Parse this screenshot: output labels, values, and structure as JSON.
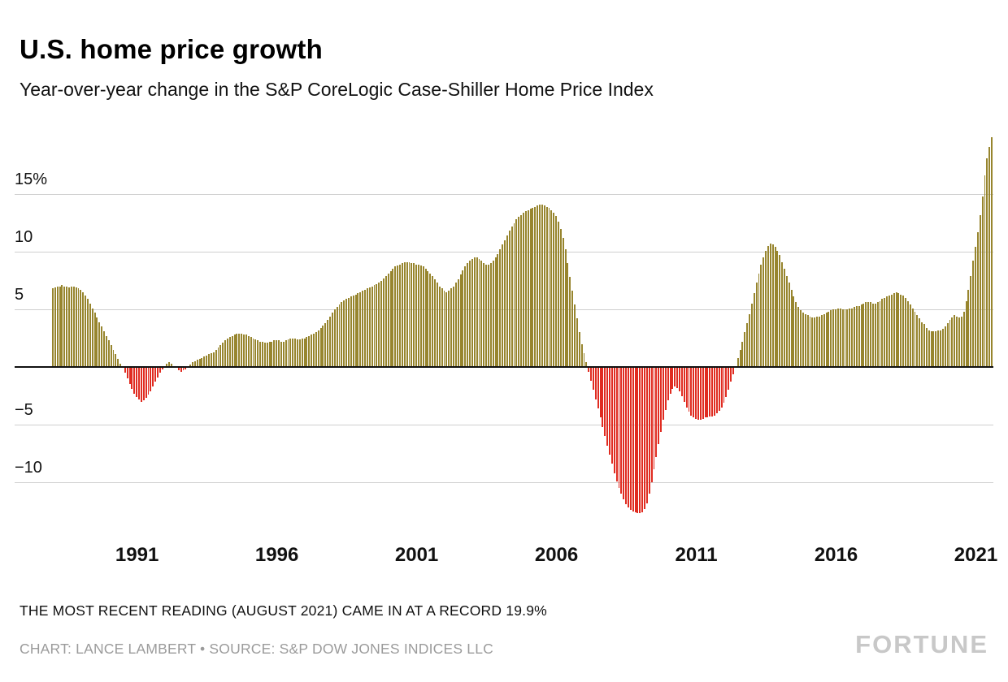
{
  "header": {
    "title": "U.S. home price growth",
    "subtitle": "Year-over-year change in the S&P CoreLogic Case-Shiller Home Price Index"
  },
  "footer": {
    "note": "THE MOST RECENT READING (AUGUST 2021) CAME IN AT A RECORD 19.9%",
    "credit": "CHART: LANCE LAMBERT • SOURCE: S&P DOW JONES INDICES LLC",
    "brand": "FORTUNE"
  },
  "chart_data": {
    "type": "bar",
    "title": "U.S. home price growth",
    "subtitle": "Year-over-year change in the S&P CoreLogic Case-Shiller Home Price Index",
    "unit": "percent, year-over-year",
    "frequency": "monthly",
    "start": "1988-01",
    "end": "2021-08",
    "latest_label": "AUGUST 2021",
    "latest_value": 19.9,
    "grid": true,
    "x_tick_labels": [
      "1991",
      "1996",
      "2001",
      "2006",
      "2011",
      "2016",
      "2021"
    ],
    "y_ticks": [
      15,
      10,
      5,
      -5,
      -10
    ],
    "y_tick_labels": [
      "15%",
      "10",
      "5",
      "−5",
      "−10"
    ],
    "ylim": [
      -13.8,
      20.6
    ],
    "colors": {
      "positive": "#97852E",
      "negative": "#E02C21",
      "gridline": "#CFCFCF",
      "zeroline": "#111111"
    },
    "values": [
      6.8,
      6.9,
      7.0,
      7.0,
      7.1,
      7.0,
      7.0,
      6.9,
      7.0,
      7.0,
      6.9,
      6.8,
      6.7,
      6.5,
      6.2,
      5.9,
      5.5,
      5.1,
      4.7,
      4.3,
      3.9,
      3.5,
      3.1,
      2.7,
      2.3,
      1.9,
      1.5,
      1.1,
      0.7,
      0.3,
      -0.1,
      -0.5,
      -1.0,
      -1.5,
      -1.9,
      -2.3,
      -2.6,
      -2.8,
      -3.0,
      -2.9,
      -2.7,
      -2.4,
      -2.1,
      -1.7,
      -1.3,
      -0.9,
      -0.5,
      -0.2,
      0.1,
      0.3,
      0.4,
      0.3,
      0.1,
      -0.1,
      -0.3,
      -0.4,
      -0.3,
      -0.2,
      0.0,
      0.2,
      0.4,
      0.5,
      0.6,
      0.7,
      0.8,
      0.9,
      1.0,
      1.1,
      1.2,
      1.3,
      1.5,
      1.7,
      1.9,
      2.1,
      2.3,
      2.5,
      2.6,
      2.7,
      2.8,
      2.9,
      2.9,
      2.9,
      2.8,
      2.8,
      2.7,
      2.6,
      2.5,
      2.4,
      2.3,
      2.2,
      2.2,
      2.1,
      2.1,
      2.2,
      2.2,
      2.3,
      2.3,
      2.3,
      2.2,
      2.2,
      2.3,
      2.4,
      2.5,
      2.5,
      2.5,
      2.4,
      2.4,
      2.5,
      2.5,
      2.6,
      2.7,
      2.8,
      2.9,
      3.0,
      3.2,
      3.4,
      3.6,
      3.8,
      4.1,
      4.4,
      4.7,
      5.0,
      5.2,
      5.4,
      5.6,
      5.8,
      5.9,
      6.0,
      6.1,
      6.2,
      6.3,
      6.4,
      6.5,
      6.6,
      6.7,
      6.8,
      6.9,
      7.0,
      7.1,
      7.2,
      7.3,
      7.5,
      7.7,
      7.9,
      8.1,
      8.3,
      8.5,
      8.7,
      8.8,
      8.9,
      9.0,
      9.1,
      9.1,
      9.1,
      9.0,
      9.0,
      8.9,
      8.9,
      8.8,
      8.7,
      8.5,
      8.3,
      8.1,
      7.9,
      7.6,
      7.3,
      7.0,
      6.8,
      6.6,
      6.5,
      6.6,
      6.8,
      7.0,
      7.3,
      7.6,
      8.0,
      8.4,
      8.7,
      9.0,
      9.2,
      9.4,
      9.5,
      9.5,
      9.4,
      9.2,
      9.0,
      8.9,
      8.9,
      9.0,
      9.2,
      9.5,
      9.8,
      10.2,
      10.6,
      11.0,
      11.4,
      11.8,
      12.2,
      12.5,
      12.8,
      13.0,
      13.2,
      13.4,
      13.5,
      13.6,
      13.7,
      13.8,
      13.9,
      14.0,
      14.1,
      14.1,
      14.0,
      13.9,
      13.8,
      13.6,
      13.4,
      13.1,
      12.6,
      12.0,
      11.2,
      10.2,
      9.0,
      7.8,
      6.6,
      5.4,
      4.2,
      3.0,
      2.0,
      1.2,
      0.4,
      -0.4,
      -1.2,
      -2.0,
      -2.8,
      -3.6,
      -4.4,
      -5.2,
      -6.0,
      -6.8,
      -7.6,
      -8.4,
      -9.2,
      -9.9,
      -10.5,
      -11.0,
      -11.5,
      -11.9,
      -12.2,
      -12.4,
      -12.5,
      -12.6,
      -12.7,
      -12.7,
      -12.6,
      -12.3,
      -11.8,
      -11.0,
      -10.0,
      -8.9,
      -7.8,
      -6.7,
      -5.6,
      -4.6,
      -3.7,
      -2.9,
      -2.3,
      -1.9,
      -1.7,
      -1.8,
      -2.1,
      -2.5,
      -3.0,
      -3.5,
      -3.9,
      -4.2,
      -4.4,
      -4.5,
      -4.6,
      -4.6,
      -4.5,
      -4.4,
      -4.4,
      -4.3,
      -4.3,
      -4.2,
      -4.0,
      -3.8,
      -3.5,
      -3.1,
      -2.6,
      -2.0,
      -1.3,
      -0.6,
      0.1,
      0.8,
      1.5,
      2.2,
      3.0,
      3.8,
      4.6,
      5.5,
      6.4,
      7.3,
      8.1,
      8.9,
      9.5,
      10.1,
      10.5,
      10.7,
      10.6,
      10.4,
      10.1,
      9.7,
      9.1,
      8.5,
      7.9,
      7.3,
      6.7,
      6.1,
      5.6,
      5.2,
      4.9,
      4.7,
      4.6,
      4.5,
      4.4,
      4.3,
      4.3,
      4.4,
      4.4,
      4.5,
      4.6,
      4.7,
      4.8,
      4.9,
      5.0,
      5.0,
      5.1,
      5.1,
      5.0,
      5.0,
      5.0,
      5.1,
      5.1,
      5.2,
      5.3,
      5.3,
      5.4,
      5.5,
      5.6,
      5.6,
      5.6,
      5.5,
      5.5,
      5.6,
      5.7,
      5.9,
      6.0,
      6.1,
      6.2,
      6.3,
      6.4,
      6.5,
      6.4,
      6.3,
      6.2,
      6.0,
      5.7,
      5.4,
      5.1,
      4.8,
      4.5,
      4.2,
      3.9,
      3.7,
      3.4,
      3.2,
      3.1,
      3.1,
      3.1,
      3.2,
      3.2,
      3.3,
      3.5,
      3.8,
      4.1,
      4.3,
      4.5,
      4.4,
      4.3,
      4.4,
      4.8,
      5.7,
      6.7,
      7.9,
      9.2,
      10.4,
      11.7,
      13.2,
      14.8,
      16.6,
      18.1,
      19.1,
      19.9
    ]
  }
}
